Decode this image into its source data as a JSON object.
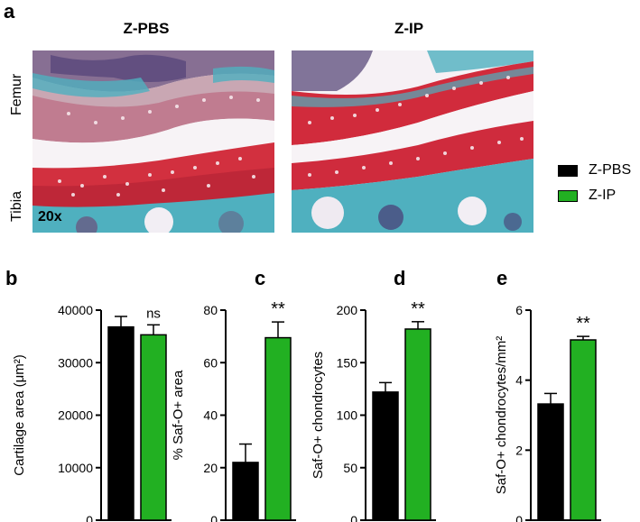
{
  "panel_a": {
    "letter": "a",
    "titles": [
      "Z-PBS",
      "Z-IP"
    ],
    "row_labels": [
      "Femur",
      "Tibia"
    ],
    "magnification": "20x"
  },
  "legend": [
    {
      "label": "Z-PBS",
      "color": "#000000"
    },
    {
      "label": "Z-IP",
      "color": "#22b022"
    }
  ],
  "colors": {
    "pbs": "#000000",
    "ip": "#22b022"
  },
  "chart_data": [
    {
      "letter": "b",
      "type": "bar",
      "categories": [
        "Z-PBS",
        "Z-IP"
      ],
      "values": [
        36800,
        35300
      ],
      "errors": [
        2000,
        1900
      ],
      "ylabel": "Cartilage area (μm²)",
      "ylim": [
        0,
        40000
      ],
      "yticks": [
        0,
        10000,
        20000,
        30000,
        40000
      ],
      "annotation": "ns"
    },
    {
      "letter": "c",
      "type": "bar",
      "categories": [
        "Z-PBS",
        "Z-IP"
      ],
      "values": [
        22,
        69.5
      ],
      "errors": [
        7,
        6
      ],
      "ylabel": "% Saf-O+ area",
      "ylim": [
        0,
        80
      ],
      "yticks": [
        0,
        20,
        40,
        60,
        80
      ],
      "annotation": "**"
    },
    {
      "letter": "d",
      "type": "bar",
      "categories": [
        "Z-PBS",
        "Z-IP"
      ],
      "values": [
        122,
        182
      ],
      "errors": [
        9,
        7
      ],
      "ylabel": "Saf-O+ chondrocytes",
      "ylim": [
        0,
        200
      ],
      "yticks": [
        0,
        50,
        100,
        150,
        200
      ],
      "annotation": "**"
    },
    {
      "letter": "e",
      "type": "bar",
      "categories": [
        "Z-PBS",
        "Z-IP"
      ],
      "values": [
        3.32,
        5.15
      ],
      "errors": [
        0.3,
        0.1
      ],
      "ylabel": "Saf-O+ chondrocytes/mm²",
      "ylim": [
        0,
        6
      ],
      "yticks": [
        0,
        2,
        4,
        6
      ],
      "annotation": "**"
    }
  ]
}
